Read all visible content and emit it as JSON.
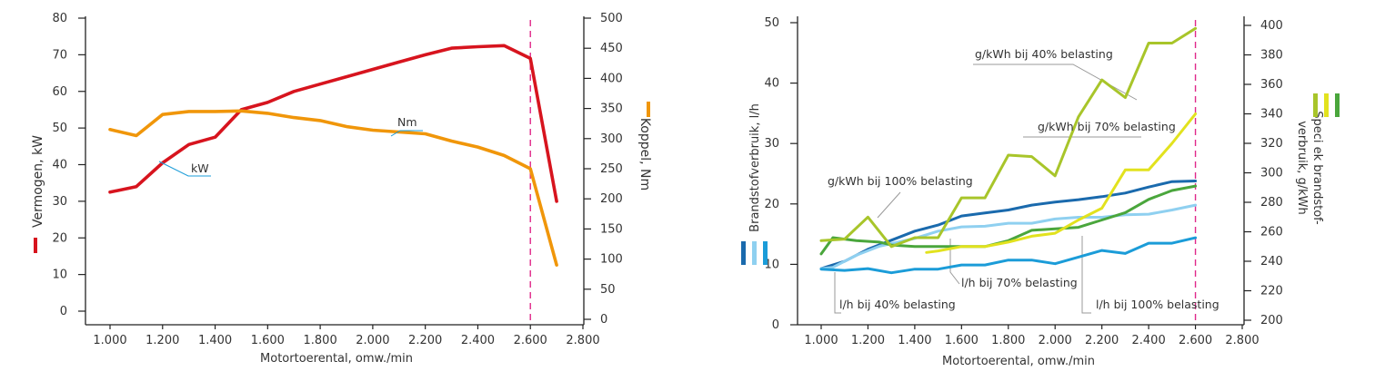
{
  "chart_data": [
    {
      "type": "line",
      "xlabel": "Motortoerental, omw./min",
      "x_ticks": [
        "1.000",
        "1.200",
        "1.400",
        "1.600",
        "1.800",
        "2.000",
        "2.200",
        "2.400",
        "2.600",
        "2.800"
      ],
      "xlim": [
        900,
        2800
      ],
      "y_left": {
        "label": "Vermogen, kW",
        "lim": [
          0,
          80
        ],
        "ticks": [
          "0",
          "10",
          "20",
          "30",
          "40",
          "50",
          "60",
          "70",
          "80"
        ]
      },
      "y_right": {
        "label": "Koppel, Nm",
        "lim": [
          0,
          500
        ],
        "ticks": [
          "0",
          "50",
          "100",
          "150",
          "200",
          "250",
          "300",
          "350",
          "400",
          "450",
          "500"
        ]
      },
      "marker_line_x": 2600,
      "x": [
        1000,
        1100,
        1200,
        1300,
        1400,
        1500,
        1600,
        1700,
        1800,
        1900,
        2000,
        2100,
        2200,
        2300,
        2400,
        2500,
        2600,
        2700
      ],
      "series": [
        {
          "name": "kW",
          "axis": "left",
          "color": "#d7141e",
          "values": [
            32.5,
            34,
            40.5,
            45.5,
            47.5,
            55,
            57,
            60,
            62,
            64,
            66,
            68,
            70,
            71.8,
            72.2,
            72.5,
            69,
            30
          ]
        },
        {
          "name": "Nm",
          "axis": "right",
          "color": "#f0960a",
          "values": [
            315,
            305,
            340,
            345,
            345,
            346,
            342,
            335,
            330,
            320,
            314,
            311,
            308,
            296,
            286,
            272,
            250,
            90
          ]
        }
      ],
      "grid": false
    },
    {
      "type": "line",
      "xlabel": "Motortoerental, omw./min",
      "x_ticks": [
        "1.000",
        "1.200",
        "1.400",
        "1.600",
        "1.800",
        "2.000",
        "2.200",
        "2.400",
        "2.600",
        "2.800"
      ],
      "xlim": [
        900,
        2800
      ],
      "y_left": {
        "label": "Brandstofverbruik, l/h",
        "lim": [
          0,
          50
        ],
        "ticks": [
          "0",
          "10",
          "20",
          "30",
          "40",
          "50"
        ]
      },
      "y_right": {
        "label_lines": [
          "Speci ek brandstof-",
          "verbruik, g/kWh"
        ],
        "lim": [
          200,
          400
        ],
        "ticks": [
          "200",
          "220",
          "240",
          "260",
          "280",
          "300",
          "320",
          "340",
          "360",
          "380",
          "400"
        ]
      },
      "marker_line_x": 2600,
      "series": [
        {
          "name": "l/h bij 100% belasting",
          "axis": "left",
          "color": "#1a6aad",
          "x": [
            1000,
            1100,
            1200,
            1300,
            1400,
            1500,
            1600,
            1700,
            1800,
            1900,
            2000,
            2100,
            2200,
            2300,
            2400,
            2500,
            2600
          ],
          "values": [
            9.3,
            10.5,
            12.5,
            14,
            15.5,
            16.5,
            18,
            18.5,
            19,
            19.8,
            20.3,
            20.7,
            21.2,
            21.8,
            22.8,
            23.7,
            23.8
          ]
        },
        {
          "name": "l/h bij 70% belasting",
          "axis": "left",
          "color": "#8fd0f0",
          "x": [
            1000,
            1050,
            1150,
            1250,
            1400,
            1500,
            1600,
            1700,
            1800,
            1900,
            2000,
            2100,
            2200,
            2300,
            2400,
            2500,
            2600
          ],
          "values": [
            9.3,
            9.5,
            11.5,
            13,
            14.3,
            15.5,
            16.2,
            16.3,
            16.8,
            16.8,
            17.5,
            17.8,
            17.8,
            18.2,
            18.3,
            19,
            19.8
          ]
        },
        {
          "name": "l/h bij 40% belasting",
          "axis": "left",
          "color": "#1b9cd8",
          "x": [
            1000,
            1100,
            1200,
            1300,
            1400,
            1500,
            1600,
            1700,
            1800,
            1900,
            2000,
            2100,
            2200,
            2300,
            2400,
            2500,
            2600
          ],
          "values": [
            9.2,
            9,
            9.3,
            8.6,
            9.2,
            9.2,
            9.9,
            9.9,
            10.7,
            10.7,
            10.1,
            11.2,
            12.3,
            11.8,
            13.5,
            13.5,
            14.4
          ]
        },
        {
          "name": "g/kWh bij 100% belasting",
          "axis": "right",
          "color": "#4aa63c",
          "x": [
            1000,
            1050,
            1150,
            1250,
            1300,
            1400,
            1500,
            1600,
            1700,
            1800,
            1900,
            2000,
            2100,
            2200,
            2300,
            2400,
            2500,
            2600
          ],
          "values": [
            245,
            256,
            254,
            253,
            251,
            250,
            250,
            250,
            250,
            254,
            261,
            262,
            263,
            268,
            273,
            282,
            288,
            291
          ]
        },
        {
          "name": "g/kWh bij 70% belasting",
          "axis": "right",
          "color": "#e2e21e",
          "x": [
            1450,
            1500,
            1600,
            1700,
            1800,
            1900,
            2000,
            2100,
            2200,
            2300,
            2400,
            2500,
            2600
          ],
          "values": [
            246,
            247,
            250,
            250,
            253,
            257,
            259,
            268,
            276,
            302,
            302,
            320,
            340
          ]
        },
        {
          "name": "g/kWh bij 40% belasting",
          "axis": "right",
          "color": "#a8c52a",
          "x": [
            1000,
            1100,
            1200,
            1300,
            1400,
            1500,
            1600,
            1700,
            1800,
            1900,
            2000,
            2100,
            2200,
            2300,
            2400,
            2500,
            2600
          ],
          "values": [
            254,
            255,
            270,
            250,
            256,
            256,
            283,
            283,
            312,
            311,
            298,
            338,
            363,
            351,
            388,
            388,
            398
          ]
        }
      ],
      "grid": false
    }
  ]
}
